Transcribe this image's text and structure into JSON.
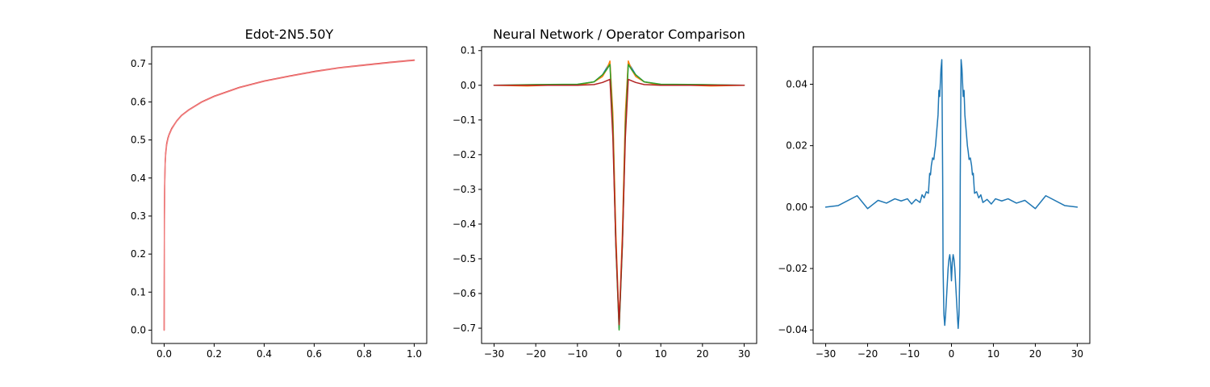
{
  "chart_data": [
    {
      "type": "line",
      "title": "Edot-2N5.50Y",
      "xlabel": "",
      "ylabel": "",
      "xlim": [
        -0.05,
        1.05
      ],
      "ylim": [
        -0.035,
        0.745
      ],
      "xticks": [
        0.0,
        0.2,
        0.4,
        0.6,
        0.8,
        1.0
      ],
      "xtick_labels": [
        "0.0",
        "0.2",
        "0.4",
        "0.6",
        "0.8",
        "1.0"
      ],
      "yticks": [
        0.0,
        0.1,
        0.2,
        0.3,
        0.4,
        0.5,
        0.6,
        0.7
      ],
      "ytick_labels": [
        "0.0",
        "0.1",
        "0.2",
        "0.3",
        "0.4",
        "0.5",
        "0.6",
        "0.7"
      ],
      "grid": false,
      "series": [
        {
          "color": "#d62728",
          "width": 1.5,
          "x": [
            0.0,
            0.001,
            0.002,
            0.004,
            0.006,
            0.01,
            0.015,
            0.02,
            0.03,
            0.04,
            0.05,
            0.07,
            0.1,
            0.15,
            0.2,
            0.3,
            0.4,
            0.5,
            0.6,
            0.7,
            0.8,
            0.9,
            1.0
          ],
          "y": [
            0.0,
            0.3,
            0.38,
            0.44,
            0.465,
            0.49,
            0.505,
            0.515,
            0.53,
            0.54,
            0.55,
            0.565,
            0.58,
            0.6,
            0.615,
            0.638,
            0.655,
            0.668,
            0.68,
            0.69,
            0.697,
            0.704,
            0.71
          ]
        },
        {
          "color": "#f08080",
          "width": 1.5,
          "x": [
            0.0,
            0.001,
            0.002,
            0.004,
            0.006,
            0.01,
            0.015,
            0.02,
            0.03,
            0.04,
            0.05,
            0.07,
            0.1,
            0.15,
            0.2,
            0.3,
            0.4,
            0.5,
            0.6,
            0.7,
            0.8,
            0.9,
            1.0
          ],
          "y": [
            0.0,
            0.29,
            0.37,
            0.435,
            0.46,
            0.486,
            0.502,
            0.513,
            0.528,
            0.539,
            0.549,
            0.564,
            0.579,
            0.599,
            0.614,
            0.637,
            0.654,
            0.667,
            0.679,
            0.689,
            0.696,
            0.703,
            0.709
          ]
        }
      ]
    },
    {
      "type": "line",
      "title": "Neural Network / Operator Comparison",
      "xlabel": "",
      "ylabel": "",
      "xlim": [
        -33,
        33
      ],
      "ylim": [
        -0.744,
        0.111
      ],
      "xticks": [
        -30,
        -20,
        -10,
        0,
        10,
        20,
        30
      ],
      "xtick_labels": [
        "−30",
        "−20",
        "−10",
        "0",
        "10",
        "20",
        "30"
      ],
      "yticks": [
        -0.7,
        -0.6,
        -0.5,
        -0.4,
        -0.3,
        -0.2,
        -0.1,
        0.0,
        0.1
      ],
      "ytick_labels": [
        "−0.7",
        "−0.6",
        "−0.5",
        "−0.4",
        "−0.3",
        "−0.2",
        "−0.1",
        "0.0",
        "0.1"
      ],
      "grid": false,
      "series": [
        {
          "color": "#1f77b4",
          "width": 1.5,
          "x": [
            -30,
            -20,
            -10,
            -6,
            -4,
            -3,
            -2.2,
            -1.5,
            -0.8,
            0,
            0.8,
            1.5,
            2.2,
            3,
            4,
            6,
            10,
            20,
            30
          ],
          "y": [
            0.0,
            0.001,
            0.002,
            0.01,
            0.03,
            0.05,
            0.065,
            -0.1,
            -0.45,
            -0.7,
            -0.45,
            -0.1,
            0.065,
            0.05,
            0.03,
            0.01,
            0.002,
            0.001,
            0.0
          ]
        },
        {
          "color": "#ff7f0e",
          "width": 1.5,
          "x": [
            -30,
            -22,
            -15,
            -10,
            -6,
            -4,
            -3,
            -2.2,
            -1.5,
            -0.8,
            0,
            0.8,
            1.5,
            2.2,
            3,
            4,
            6,
            10,
            15,
            22,
            30
          ],
          "y": [
            0.0,
            -0.002,
            0.001,
            0.0,
            0.01,
            0.025,
            0.045,
            0.07,
            -0.08,
            -0.42,
            -0.69,
            -0.42,
            -0.08,
            0.07,
            0.045,
            0.025,
            0.01,
            0.0,
            0.001,
            -0.002,
            0.0
          ]
        },
        {
          "color": "#2ca02c",
          "width": 1.5,
          "x": [
            -30,
            -20,
            -10,
            -6,
            -4,
            -3,
            -2.2,
            -1.5,
            -0.8,
            0,
            0.8,
            1.5,
            2.2,
            3,
            4,
            6,
            10,
            20,
            30
          ],
          "y": [
            0.0,
            0.002,
            0.003,
            0.01,
            0.03,
            0.045,
            0.06,
            -0.12,
            -0.46,
            -0.705,
            -0.46,
            -0.12,
            0.06,
            0.045,
            0.03,
            0.01,
            0.003,
            0.002,
            0.0
          ]
        },
        {
          "color": "#b22222",
          "width": 1.5,
          "x": [
            -30,
            -20,
            -10,
            -6,
            -4,
            -3,
            -2.2,
            -1.5,
            -0.8,
            0,
            0.8,
            1.5,
            2.2,
            3,
            4,
            6,
            10,
            20,
            30
          ],
          "y": [
            0.0,
            0.0,
            0.0,
            0.002,
            0.008,
            0.013,
            0.017,
            -0.15,
            -0.45,
            -0.69,
            -0.45,
            -0.15,
            0.017,
            0.013,
            0.008,
            0.002,
            0.0,
            0.0,
            0.0
          ]
        }
      ]
    },
    {
      "type": "line",
      "title": "",
      "xlabel": "",
      "ylabel": "",
      "xlim": [
        -33,
        33
      ],
      "ylim": [
        -0.0444,
        0.0522
      ],
      "xticks": [
        -30,
        -20,
        -10,
        0,
        10,
        20,
        30
      ],
      "xtick_labels": [
        "−30",
        "−20",
        "−10",
        "0",
        "10",
        "20",
        "30"
      ],
      "yticks": [
        -0.04,
        -0.02,
        0.0,
        0.02,
        0.04
      ],
      "ytick_labels": [
        "−0.04",
        "−0.02",
        "0.00",
        "0.02",
        "0.04"
      ],
      "grid": false,
      "series": [
        {
          "color": "#1f77b4",
          "width": 1.5,
          "x": [
            -30,
            -27,
            -22.5,
            -20,
            -17.5,
            -15.5,
            -13.5,
            -12,
            -10.5,
            -9.5,
            -8.5,
            -7.5,
            -7,
            -6.5,
            -6,
            -5.5,
            -5.2,
            -5,
            -4.8,
            -4.5,
            -4.2,
            -4,
            -3.8,
            -3.5,
            -3.2,
            -3,
            -2.8,
            -2.5,
            -2.3,
            -2.1,
            -2.0,
            -1.8,
            -1.6,
            -1.4,
            -1.2,
            -1.0,
            -0.8,
            -0.6,
            -0.4,
            -0.2,
            0.0,
            0.2,
            0.4,
            0.6,
            0.8,
            1.0,
            1.2,
            1.4,
            1.6,
            1.8,
            2.0,
            2.1,
            2.3,
            2.5,
            2.8,
            3.0,
            3.2,
            3.5,
            3.8,
            4.0,
            4.2,
            4.5,
            4.8,
            5.0,
            5.2,
            5.5,
            6.0,
            6.5,
            7.0,
            7.5,
            8.5,
            9.5,
            10.5,
            12,
            13.5,
            15.5,
            17.5,
            20,
            22.5,
            27,
            30
          ],
          "y": [
            0.0,
            0.0005,
            0.0037,
            -0.0005,
            0.0022,
            0.0013,
            0.0027,
            0.002,
            0.0027,
            0.001,
            0.0025,
            0.0015,
            0.004,
            0.003,
            0.005,
            0.0045,
            0.011,
            0.0105,
            0.0135,
            0.016,
            0.0155,
            0.018,
            0.02,
            0.025,
            0.03,
            0.038,
            0.036,
            0.045,
            0.048,
            0.01,
            -0.02,
            -0.035,
            -0.0385,
            -0.035,
            -0.03,
            -0.025,
            -0.02,
            -0.017,
            -0.0155,
            -0.018,
            -0.024,
            -0.018,
            -0.0155,
            -0.017,
            -0.02,
            -0.025,
            -0.03,
            -0.035,
            -0.0395,
            -0.035,
            -0.02,
            0.01,
            0.048,
            0.045,
            0.036,
            0.038,
            0.03,
            0.025,
            0.02,
            0.018,
            0.0155,
            0.016,
            0.0135,
            0.0105,
            0.011,
            0.0045,
            0.005,
            0.003,
            0.004,
            0.0015,
            0.0025,
            0.001,
            0.0027,
            0.002,
            0.0027,
            0.0013,
            0.0022,
            -0.0005,
            0.0037,
            0.0005,
            0.0
          ]
        }
      ]
    }
  ]
}
